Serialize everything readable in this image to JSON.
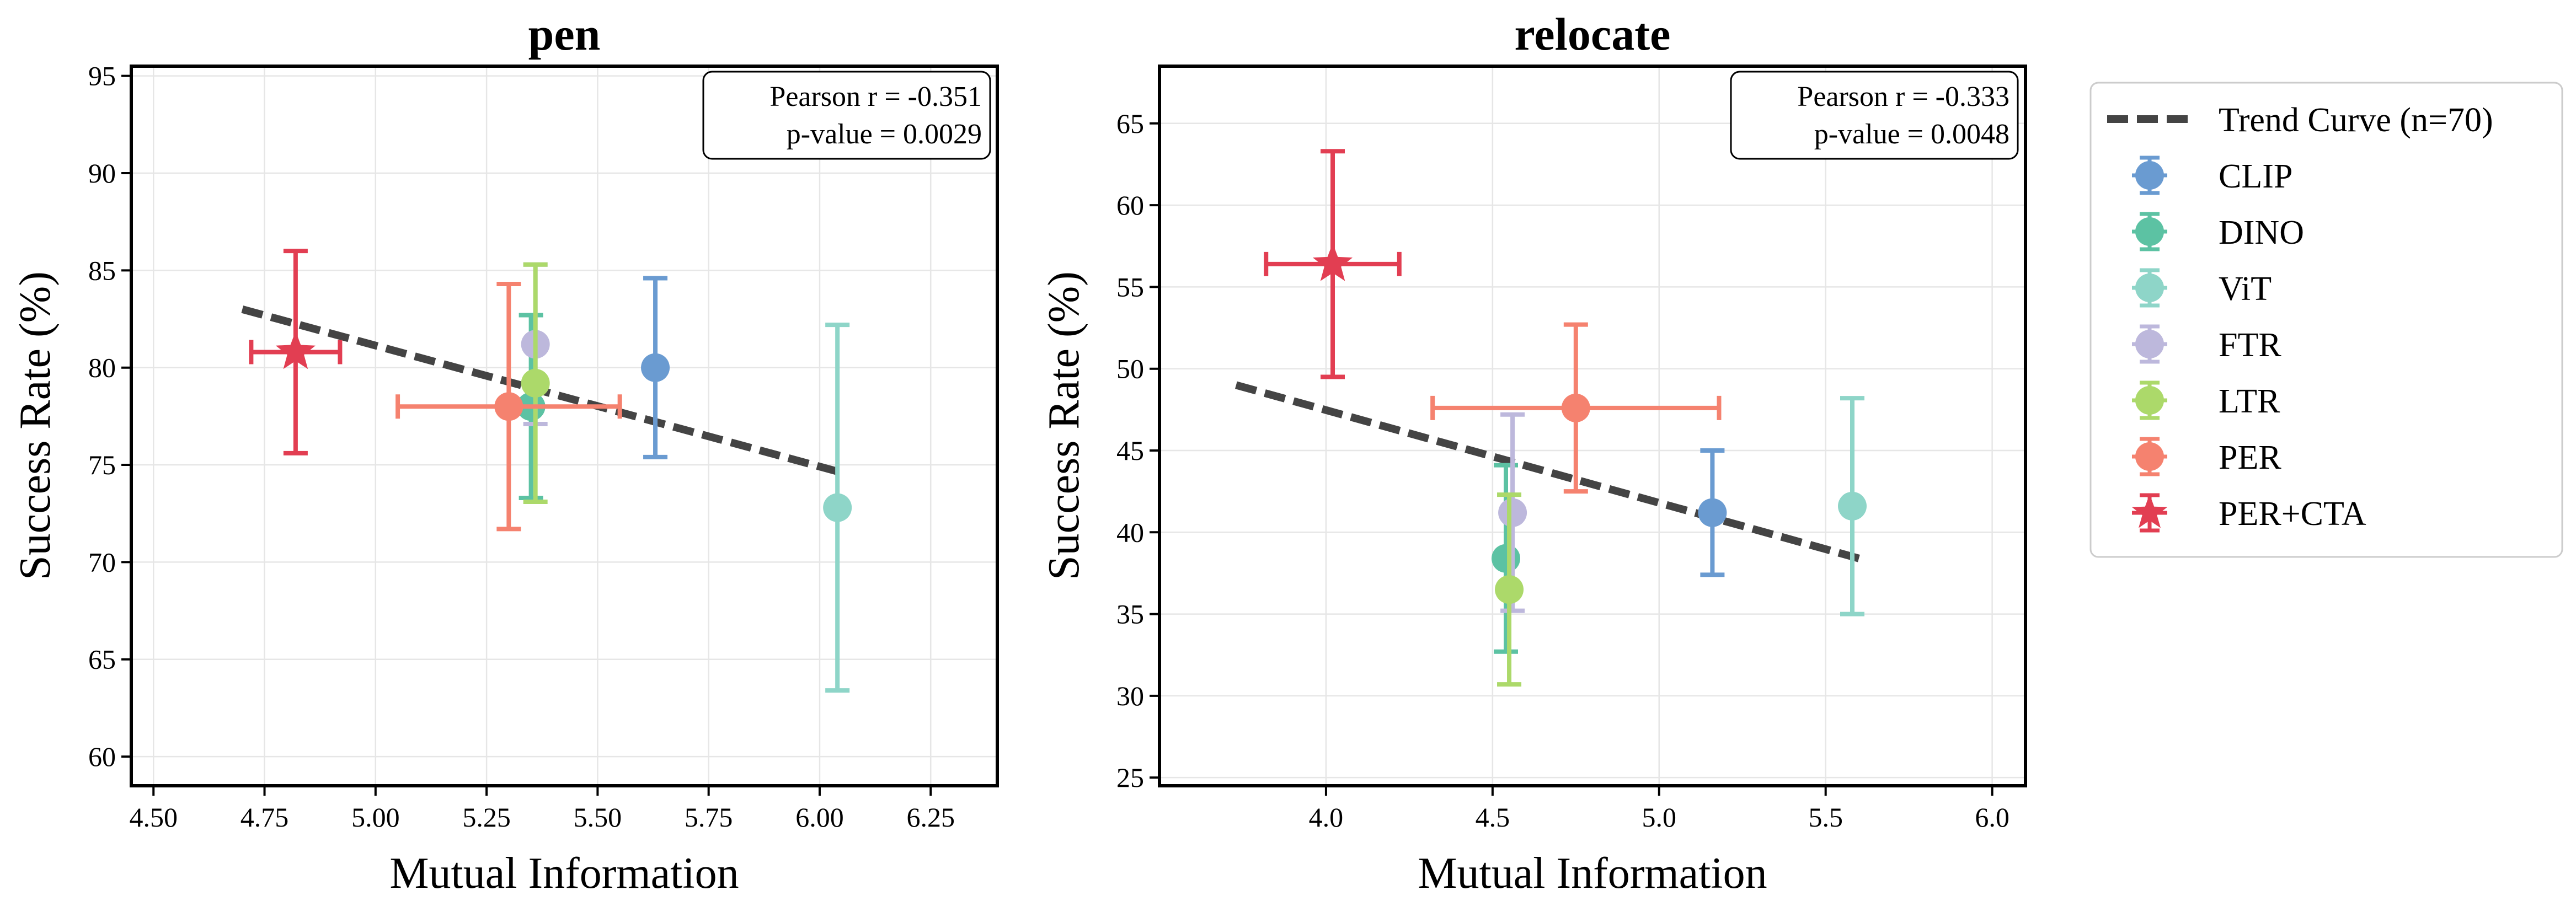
{
  "chart_data": [
    {
      "type": "scatter",
      "title": "pen",
      "xlabel": "Mutual Information",
      "ylabel": "Success Rate (%)",
      "xlim": [
        4.45,
        6.4
      ],
      "ylim": [
        58.5,
        95.5
      ],
      "xticks": [
        4.5,
        4.75,
        5.0,
        5.25,
        5.5,
        5.75,
        6.0,
        6.25
      ],
      "xtick_labels": [
        "4.50",
        "4.75",
        "5.00",
        "5.25",
        "5.50",
        "5.75",
        "6.00",
        "6.25"
      ],
      "yticks": [
        60,
        65,
        70,
        75,
        80,
        85,
        90,
        95
      ],
      "ytick_labels": [
        "60",
        "65",
        "70",
        "75",
        "80",
        "85",
        "90",
        "95"
      ],
      "stats": [
        "Pearson r = -0.351",
        "p-value = 0.0029"
      ],
      "trend": {
        "x": [
          4.7,
          6.05
        ],
        "y": [
          83.0,
          74.6
        ]
      },
      "points": [
        {
          "name": "CLIP",
          "x": 5.63,
          "y": 80.0,
          "xerr": 0,
          "yerr": 4.6
        },
        {
          "name": "DINO",
          "x": 5.35,
          "y": 78.0,
          "xerr": 0,
          "yerr": 4.7
        },
        {
          "name": "ViT",
          "x": 6.04,
          "y": 72.8,
          "xerr": 0,
          "yerr": 9.4
        },
        {
          "name": "FTR",
          "x": 5.36,
          "y": 81.2,
          "xerr": 0,
          "yerr": 4.1
        },
        {
          "name": "LTR",
          "x": 5.36,
          "y": 79.2,
          "xerr": 0,
          "yerr": 6.1
        },
        {
          "name": "PER",
          "x": 5.3,
          "y": 78.0,
          "xerr": 0.25,
          "yerr": 6.3
        },
        {
          "name": "PER+CTA",
          "x": 4.82,
          "y": 80.8,
          "xerr": 0.1,
          "yerr": 5.2
        }
      ]
    },
    {
      "type": "scatter",
      "title": "relocate",
      "xlabel": "Mutual Information",
      "ylabel": "Success Rate (%)",
      "xlim": [
        3.5,
        6.1
      ],
      "ylim": [
        24.5,
        68.5
      ],
      "xticks": [
        4.0,
        4.5,
        5.0,
        5.5,
        6.0
      ],
      "xtick_labels": [
        "4.0",
        "4.5",
        "5.0",
        "5.5",
        "6.0"
      ],
      "yticks": [
        25,
        30,
        35,
        40,
        45,
        50,
        55,
        60,
        65
      ],
      "ytick_labels": [
        "25",
        "30",
        "35",
        "40",
        "45",
        "50",
        "55",
        "60",
        "65"
      ],
      "stats": [
        "Pearson r = -0.333",
        "p-value = 0.0048"
      ],
      "trend": {
        "x": [
          3.73,
          5.6
        ],
        "y": [
          49.0,
          38.4
        ]
      },
      "points": [
        {
          "name": "CLIP",
          "x": 5.16,
          "y": 41.2,
          "xerr": 0,
          "yerr": 3.8
        },
        {
          "name": "DINO",
          "x": 4.54,
          "y": 38.4,
          "xerr": 0,
          "yerr": 5.7
        },
        {
          "name": "ViT",
          "x": 5.58,
          "y": 41.6,
          "xerr": 0,
          "yerr": 6.6
        },
        {
          "name": "FTR",
          "x": 4.56,
          "y": 41.2,
          "xerr": 0,
          "yerr": 6.0
        },
        {
          "name": "LTR",
          "x": 4.55,
          "y": 36.5,
          "xerr": 0,
          "yerr": 5.8
        },
        {
          "name": "PER",
          "x": 4.75,
          "y": 47.6,
          "xerr": 0.43,
          "yerr": 5.1
        },
        {
          "name": "PER+CTA",
          "x": 4.02,
          "y": 56.4,
          "xerr": 0.2,
          "yerr": 6.9
        }
      ]
    }
  ],
  "legend": {
    "trend_label": "Trend Curve (n=70)",
    "items": [
      {
        "name": "CLIP",
        "marker": "circle"
      },
      {
        "name": "DINO",
        "marker": "circle"
      },
      {
        "name": "ViT",
        "marker": "circle"
      },
      {
        "name": "FTR",
        "marker": "circle"
      },
      {
        "name": "LTR",
        "marker": "circle"
      },
      {
        "name": "PER",
        "marker": "circle"
      },
      {
        "name": "PER+CTA",
        "marker": "star"
      }
    ]
  },
  "colors": {
    "CLIP": "#6a9bd1",
    "DINO": "#5cc2a3",
    "ViT": "#8ed5c8",
    "FTR": "#bdb8dc",
    "LTR": "#acd96a",
    "PER": "#f5826f",
    "PER+CTA": "#e23e52",
    "trend": "#444444"
  }
}
